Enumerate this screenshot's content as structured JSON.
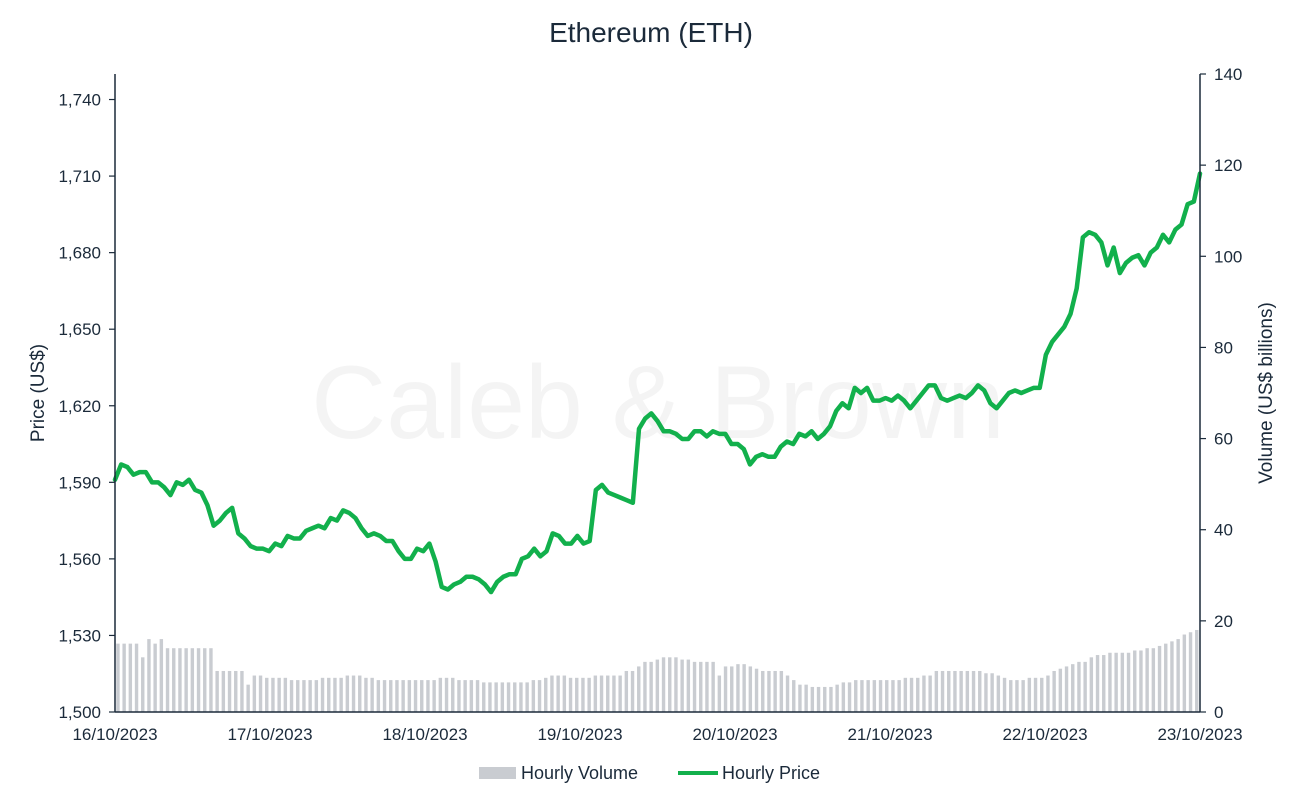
{
  "watermark": "Caleb & Brown",
  "chart_data": {
    "type": "line",
    "title": "Ethereum (ETH)",
    "xlabel": "",
    "ylabel": "Price (US$)",
    "y2label": "Volume (US$ billions)",
    "x_ticks": [
      "16/10/2023",
      "17/10/2023",
      "18/10/2023",
      "19/10/2023",
      "20/10/2023",
      "21/10/2023",
      "22/10/2023",
      "23/10/2023"
    ],
    "ylim": [
      1500,
      1750
    ],
    "y_ticks": [
      "1,500",
      "1,530",
      "1,560",
      "1,590",
      "1,620",
      "1,650",
      "1,680",
      "1,710",
      "1,740"
    ],
    "y2lim": [
      0,
      140
    ],
    "y2_ticks": [
      "0",
      "20",
      "40",
      "60",
      "80",
      "100",
      "120",
      "140"
    ],
    "grid": false,
    "legend_position": "bottom-center",
    "colors": {
      "price": "#12b04c",
      "volume": "#c9ccd1",
      "axis": "#1b2a3a"
    },
    "series": [
      {
        "name": "Hourly Price",
        "kind": "line",
        "axis": "left",
        "values": [
          1591,
          1597,
          1596,
          1593,
          1594,
          1594,
          1590,
          1590,
          1588,
          1585,
          1590,
          1589,
          1591,
          1587,
          1586,
          1581,
          1573,
          1575,
          1578,
          1580,
          1570,
          1568,
          1565,
          1564,
          1564,
          1563,
          1566,
          1565,
          1569,
          1568,
          1568,
          1571,
          1572,
          1573,
          1572,
          1576,
          1575,
          1579,
          1578,
          1576,
          1572,
          1569,
          1570,
          1569,
          1567,
          1567,
          1563,
          1560,
          1560,
          1564,
          1563,
          1566,
          1559,
          1549,
          1548,
          1550,
          1551,
          1553,
          1553,
          1552,
          1550,
          1547,
          1551,
          1553,
          1554,
          1554,
          1560,
          1561,
          1564,
          1561,
          1563,
          1570,
          1569,
          1566,
          1566,
          1569,
          1566,
          1567,
          1587,
          1589,
          1586,
          1585,
          1584,
          1583,
          1582,
          1611,
          1615,
          1617,
          1614,
          1610,
          1610,
          1609,
          1607,
          1607,
          1610,
          1610,
          1608,
          1610,
          1609,
          1609,
          1605,
          1605,
          1603,
          1597,
          1600,
          1601,
          1600,
          1600,
          1604,
          1606,
          1605,
          1609,
          1608,
          1610,
          1607,
          1609,
          1612,
          1618,
          1621,
          1619,
          1627,
          1625,
          1627,
          1622,
          1622,
          1623,
          1622,
          1624,
          1622,
          1619,
          1622,
          1625,
          1628,
          1628,
          1623,
          1622,
          1623,
          1624,
          1623,
          1625,
          1628,
          1626,
          1621,
          1619,
          1622,
          1625,
          1626,
          1625,
          1626,
          1627,
          1627,
          1640,
          1645,
          1648,
          1651,
          1656,
          1666,
          1686,
          1688,
          1687,
          1684,
          1675,
          1682,
          1672,
          1676,
          1678,
          1679,
          1675,
          1680,
          1682,
          1687,
          1684,
          1689,
          1691,
          1699,
          1700,
          1711
        ]
      },
      {
        "name": "Hourly Volume",
        "kind": "bar",
        "axis": "right",
        "values": [
          15,
          15,
          15,
          15,
          12,
          16,
          15,
          16,
          14,
          14,
          14,
          14,
          14,
          14,
          14,
          14,
          9,
          9,
          9,
          9,
          9,
          6,
          8,
          8,
          7.5,
          7.5,
          7.5,
          7.5,
          7,
          7,
          7,
          7,
          7,
          7.5,
          7.5,
          7.5,
          7.5,
          8,
          8,
          8,
          7.5,
          7.5,
          7,
          7,
          7,
          7,
          7,
          7,
          7,
          7,
          7,
          7,
          7.5,
          7.5,
          7.5,
          7,
          7,
          7,
          7,
          6.5,
          6.5,
          6.5,
          6.5,
          6.5,
          6.5,
          6.5,
          6.5,
          7,
          7,
          7.5,
          8,
          8,
          8,
          7.5,
          7.5,
          7.5,
          7.5,
          8,
          8,
          8,
          8,
          8,
          9,
          9,
          10,
          11,
          11,
          11.5,
          12,
          12,
          12,
          11.5,
          11.5,
          11,
          11,
          11,
          11,
          8,
          10,
          10,
          10.5,
          10.5,
          10,
          9.5,
          9,
          9,
          9,
          9,
          8,
          7,
          6,
          6,
          5.5,
          5.5,
          5.5,
          5.5,
          6,
          6.5,
          6.5,
          7,
          7,
          7,
          7,
          7,
          7,
          7,
          7,
          7.5,
          7.5,
          7.5,
          8,
          8,
          9,
          9,
          9,
          9,
          9,
          9,
          9,
          9,
          8.5,
          8.5,
          8,
          7.5,
          7,
          7,
          7,
          7.5,
          7.5,
          7.5,
          8,
          9,
          9.5,
          10,
          10.5,
          11,
          11,
          12,
          12.5,
          12.5,
          13,
          13,
          13,
          13,
          13.5,
          13.5,
          14,
          14,
          14.5,
          15,
          15.5,
          16,
          17,
          17.5,
          18
        ]
      }
    ]
  }
}
